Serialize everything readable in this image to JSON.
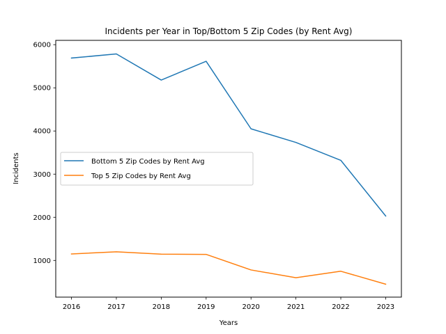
{
  "chart_data": {
    "type": "line",
    "title": "Incidents per Year in Top/Bottom 5 Zip Codes (by Rent Avg)",
    "xlabel": "Years",
    "ylabel": "Incidents",
    "x": [
      2016,
      2017,
      2018,
      2019,
      2020,
      2021,
      2022,
      2023
    ],
    "xlim": [
      2015.65,
      2023.35
    ],
    "ylim": [
      150,
      6100
    ],
    "yticks": [
      1000,
      2000,
      3000,
      4000,
      5000,
      6000
    ],
    "grid": false,
    "legend_position": "center-left",
    "series": [
      {
        "name": "Bottom 5 Zip Codes by Rent Avg",
        "color": "#1f77b4",
        "values": [
          5690,
          5785,
          5180,
          5615,
          4050,
          3735,
          3320,
          2030
        ]
      },
      {
        "name": "Top 5 Zip Codes by Rent Avg",
        "color": "#ff7f0e",
        "values": [
          1150,
          1200,
          1145,
          1140,
          780,
          600,
          750,
          450
        ]
      }
    ]
  }
}
